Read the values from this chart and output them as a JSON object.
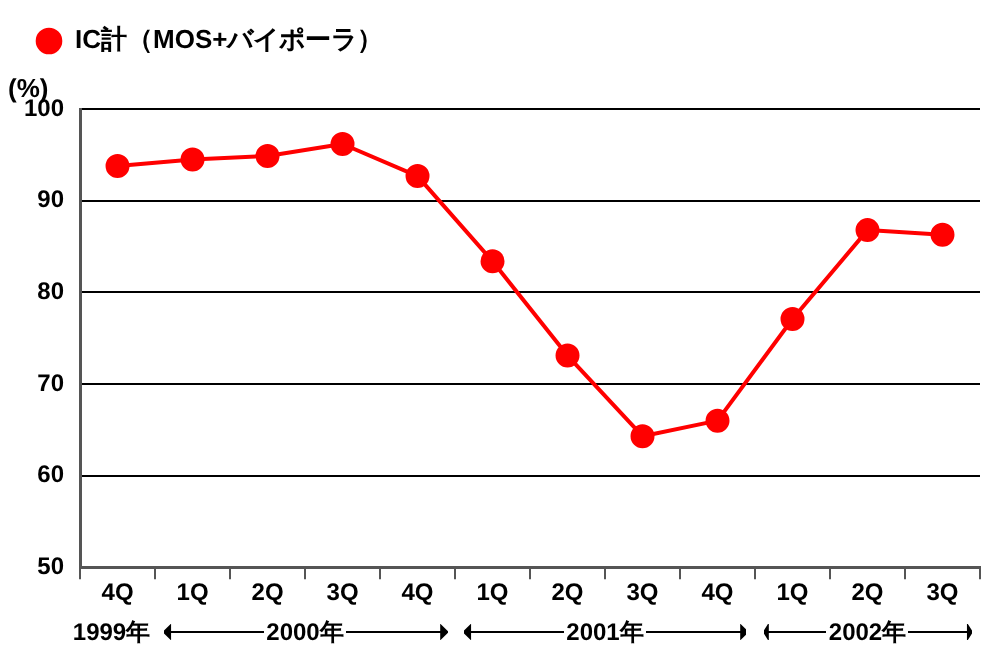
{
  "chart_data": {
    "type": "line",
    "ylabel": "(%)",
    "categories": [
      "4Q",
      "1Q",
      "2Q",
      "3Q",
      "4Q",
      "1Q",
      "2Q",
      "3Q",
      "4Q",
      "1Q",
      "2Q",
      "3Q"
    ],
    "series": [
      {
        "name": "IC計（MOS+バイポーラ）",
        "color": "#ff0000",
        "values": [
          93.8,
          94.5,
          94.9,
          96.2,
          92.7,
          83.4,
          73.1,
          64.3,
          66.0,
          77.1,
          86.8,
          86.3
        ]
      }
    ],
    "ylim": [
      50,
      100
    ],
    "yticks": [
      50,
      60,
      70,
      80,
      90,
      100
    ],
    "grid": "y",
    "legend": "top left",
    "marker": "circle",
    "line_style": "solid",
    "annotations": [
      "1999年",
      "2000年",
      "2001年",
      "2002年"
    ]
  }
}
